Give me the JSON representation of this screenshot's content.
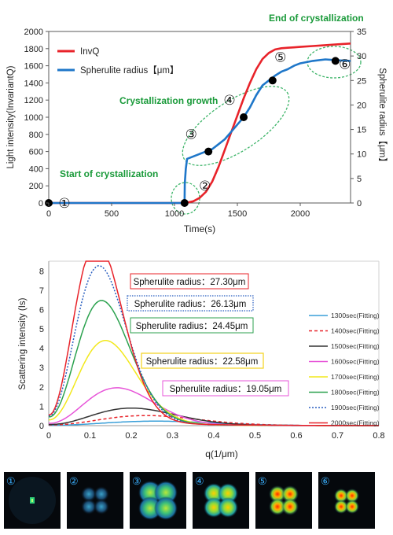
{
  "colors": {
    "invq": "#e8232a",
    "radius": "#1f77c9",
    "green_annotation": "#1a9a3a",
    "dashed_ellipse": "#3fb56a",
    "axis": "#595959",
    "grid": "#d9d9d9"
  },
  "chart_data": [
    {
      "type": "line",
      "xlabel": "Time(s)",
      "ylabel": "Light intensity(InvariantQ)",
      "y2label": "Spherulite radius【μm】",
      "xlim": [
        0,
        2400
      ],
      "ylim": [
        0,
        2000
      ],
      "y2lim": [
        0,
        35
      ],
      "xticks": [
        "0",
        "500",
        "1000",
        "1500",
        "2000"
      ],
      "yticks": [
        "0",
        "200",
        "400",
        "600",
        "800",
        "1000",
        "1200",
        "1400",
        "1600",
        "1800",
        "2000"
      ],
      "y2ticks": [
        "0",
        "5",
        "10",
        "15",
        "20",
        "25",
        "30",
        "35"
      ],
      "grid": false,
      "legend_position": "top-left",
      "series": [
        {
          "name": "InvQ",
          "color": "#e8232a",
          "axis": "left",
          "x": [
            0,
            1000,
            1080,
            1100,
            1150,
            1200,
            1250,
            1300,
            1350,
            1400,
            1450,
            1500,
            1550,
            1600,
            1650,
            1700,
            1750,
            1800,
            1850,
            1900,
            1950,
            2000,
            2100,
            2200,
            2300,
            2400
          ],
          "values": [
            0,
            0,
            0,
            5,
            20,
            60,
            130,
            250,
            420,
            620,
            820,
            1020,
            1220,
            1400,
            1560,
            1680,
            1750,
            1790,
            1805,
            1810,
            1815,
            1820,
            1830,
            1840,
            1850,
            1860
          ]
        },
        {
          "name": "Spherulite radius【μm】",
          "color": "#1f77c9",
          "axis": "right",
          "x": [
            0,
            1080,
            1082,
            1090,
            1100,
            1150,
            1200,
            1250,
            1300,
            1350,
            1400,
            1450,
            1500,
            1550,
            1600,
            1650,
            1700,
            1750,
            1800,
            1850,
            1900,
            1950,
            2000,
            2100,
            2200,
            2300,
            2400
          ],
          "values": [
            0,
            0,
            4,
            7,
            9,
            9.5,
            10,
            10.5,
            11,
            12,
            13,
            14.5,
            16,
            17.5,
            19.5,
            22,
            24,
            25,
            26,
            26.8,
            27.3,
            28,
            28.5,
            29,
            29.3,
            29.1,
            29.0
          ]
        }
      ],
      "markers": [
        {
          "label": "①",
          "x": 0,
          "y2": 0
        },
        {
          "label": "②",
          "x": 1080,
          "y2": 0
        },
        {
          "label": "③",
          "x": 1270,
          "y2": 10.5
        },
        {
          "label": "④",
          "x": 1550,
          "y2": 17.5
        },
        {
          "label": "⑤",
          "x": 1780,
          "y2": 25
        },
        {
          "label": "⑥",
          "x": 2280,
          "y2": 29
        }
      ],
      "annotations": {
        "end": "End of crystallization",
        "growth": "Crystallization growth",
        "start": "Start of crystallization"
      }
    },
    {
      "type": "line",
      "xlabel": "q(1/μm)",
      "ylabel": "Scattering intensity (Is)",
      "xlim": [
        0,
        0.8
      ],
      "ylim": [
        0,
        8.5
      ],
      "xticks": [
        "0",
        "0.1",
        "0.2",
        "0.3",
        "0.4",
        "0.5",
        "0.6",
        "0.7",
        "0.8"
      ],
      "yticks": [
        "0",
        "1",
        "2",
        "3",
        "4",
        "5",
        "6",
        "7",
        "8"
      ],
      "grid": false,
      "legend_position": "right",
      "series": [
        {
          "name": "1300sec(Fitting)",
          "color": "#3a9fd8",
          "dash": "",
          "peak_q": 0.33,
          "peak_I": 0.2,
          "base": 0.02
        },
        {
          "name": "1400sec(Fitting)",
          "color": "#e8232a",
          "dash": "4 3",
          "peak_q": 0.3,
          "peak_I": 0.45,
          "base": 0.04
        },
        {
          "name": "1500sec(Fitting)",
          "color": "#333333",
          "dash": "",
          "peak_q": 0.255,
          "peak_I": 0.78,
          "base": 0.06
        },
        {
          "name": "1600sec(Fitting)",
          "color": "#e754d8",
          "dash": "",
          "peak_q": 0.21,
          "peak_I": 1.68,
          "base": 0.12
        },
        {
          "name": "1700sec(Fitting)",
          "color": "#f2e81c",
          "dash": "",
          "peak_q": 0.175,
          "peak_I": 3.75,
          "base": 0.3
        },
        {
          "name": "1800sec(Fitting)",
          "color": "#2ca24f",
          "dash": "",
          "peak_q": 0.163,
          "peak_I": 5.5,
          "base": 0.45
        },
        {
          "name": "1900sec(Fitting)",
          "color": "#2a5fc0",
          "dash": "2 2",
          "peak_q": 0.155,
          "peak_I": 7.05,
          "base": 0.5
        },
        {
          "name": "2000sec(Fitting)",
          "color": "#e8232a",
          "dash": "",
          "peak_q": 0.148,
          "peak_I": 8.15,
          "base": 0.55
        }
      ],
      "annotations": [
        {
          "text": "Spherulite radius：27.30μm",
          "color": "#e8232a",
          "style": "solid"
        },
        {
          "text": "Spherulite radius：26.13μm",
          "color": "#2a5fc0",
          "style": "dotted"
        },
        {
          "text": "Spherulite radius：24.45μm",
          "color": "#2ca24f",
          "style": "solid"
        },
        {
          "text": "Spherulite radius：22.58μm",
          "color": "#f2d31c",
          "style": "solid"
        },
        {
          "text": "Spherulite radius：19.05μm",
          "color": "#e754d8",
          "style": "solid"
        }
      ]
    }
  ],
  "scattering_images": [
    {
      "label": "①",
      "stage": 1
    },
    {
      "label": "②",
      "stage": 2
    },
    {
      "label": "③",
      "stage": 3
    },
    {
      "label": "④",
      "stage": 4
    },
    {
      "label": "⑤",
      "stage": 5
    },
    {
      "label": "⑥",
      "stage": 6
    }
  ]
}
